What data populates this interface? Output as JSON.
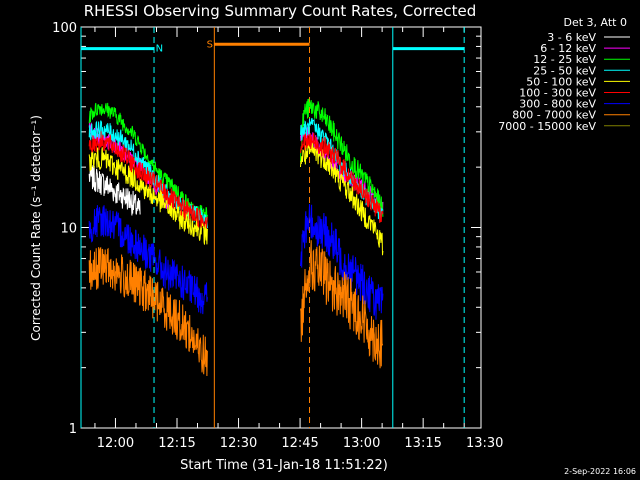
{
  "chart_data": {
    "type": "line",
    "title": "RHESSI Observing Summary Count Rates, Corrected",
    "xlabel": "Start Time (31-Jan-18 11:51:22)",
    "ylabel": "Corrected Count Rate (s⁻¹ detector⁻¹)",
    "y_scale": "log",
    "ylim": [
      1,
      100
    ],
    "y_ticks": [
      {
        "value": 1,
        "label": "1"
      },
      {
        "value": 10,
        "label": "10"
      },
      {
        "value": 100,
        "label": "100"
      }
    ],
    "x_ticks": [
      "12:00",
      "12:15",
      "12:30",
      "12:45",
      "13:00",
      "13:15",
      "13:30"
    ],
    "xlim_minutes": [
      -8.4,
      89.1
    ],
    "legend_header": "Det 3, Att 0",
    "legend_position": "top-right",
    "series": [
      {
        "name": "3 - 6 keV",
        "color": "#ffffff",
        "segments": [
          {
            "t": [
              -6.4,
              -4.0,
              -1.6,
              0.0,
              3.0,
              6.0
            ],
            "values": [
              18,
              17,
              16,
              15,
              14,
              12
            ]
          }
        ]
      },
      {
        "name": "6 - 12 keV",
        "color": "#ff00ff",
        "segments": [
          {
            "t": [
              -6.4,
              -4.0,
              0.0,
              4.0,
              8.0,
              11.0,
              13.0
            ],
            "values": [
              31,
              28,
              26,
              22,
              18,
              15,
              13
            ]
          },
          {
            "t": [
              45.1,
              48.0,
              52.0,
              56.0,
              60.0,
              63.0,
              65.3
            ],
            "values": [
              30,
              27,
              22,
              18,
              16,
              14,
              12
            ]
          }
        ]
      },
      {
        "name": "12 - 25 keV",
        "color": "#00ff00",
        "segments": [
          {
            "t": [
              -6.4,
              -4.0,
              -1.0,
              2.0,
              5.0,
              8.0,
              11.0,
              14.0,
              16.5,
              19.0,
              22.5
            ],
            "values": [
              36,
              40,
              38,
              33,
              28,
              22,
              18,
              16,
              14,
              12,
              12
            ]
          },
          {
            "t": [
              45.1,
              46.0,
              48.0,
              51.0,
              54.0,
              57.0,
              60.0,
              63.0,
              65.3
            ],
            "values": [
              24,
              38,
              40,
              35,
              28,
              22,
              18,
              15,
              12
            ]
          }
        ]
      },
      {
        "name": "25 - 50 keV",
        "color": "#00ffff",
        "segments": [
          {
            "t": [
              -6.4,
              -3.0,
              0.0,
              3.0,
              6.0,
              9.0,
              12.0,
              15.0,
              18.0,
              22.5
            ],
            "values": [
              30,
              31,
              29,
              26,
              22,
              18,
              15,
              13,
              12,
              11
            ]
          },
          {
            "t": [
              45.1,
              48.0,
              51.0,
              54.0,
              57.0,
              60.0,
              63.0,
              65.3
            ],
            "values": [
              30,
              32,
              28,
              22,
              18,
              15,
              13,
              11
            ]
          }
        ]
      },
      {
        "name": "50 - 100 keV",
        "color": "#ffff00",
        "segments": [
          {
            "t": [
              -6.4,
              -3.0,
              0.0,
              4.0,
              8.0,
              12.0,
              16.0,
              20.0,
              22.5
            ],
            "values": [
              22,
              22,
              20,
              18,
              15,
              13,
              11,
              10,
              9
            ]
          },
          {
            "t": [
              45.1,
              48.0,
              51.0,
              54.0,
              57.0,
              60.0,
              63.0,
              65.3
            ],
            "values": [
              22,
              24,
              22,
              18,
              15,
              12,
              10,
              8
            ]
          }
        ]
      },
      {
        "name": "100 - 300 keV",
        "color": "#ff0000",
        "segments": [
          {
            "t": [
              -6.4,
              -3.0,
              0.0,
              3.0,
              6.0,
              9.0,
              12.0,
              15.0,
              18.0,
              21.0,
              22.5
            ],
            "values": [
              26,
              27,
              25,
              22,
              19,
              17,
              15,
              13,
              12,
              11,
              11
            ]
          },
          {
            "t": [
              45.1,
              48.0,
              51.0,
              54.0,
              57.0,
              60.0,
              63.0,
              65.3
            ],
            "values": [
              26,
              27,
              25,
              22,
              18,
              15,
              13,
              11
            ]
          }
        ]
      },
      {
        "name": "300 - 800 keV",
        "color": "#0000ff",
        "segments": [
          {
            "t": [
              -6.4,
              -3.0,
              0.0,
              3.0,
              6.0,
              9.0,
              12.0,
              15.0,
              18.0,
              21.0,
              22.5
            ],
            "values": [
              10,
              11,
              10,
              9,
              8,
              7,
              6,
              5.5,
              5,
              4.5,
              4.5
            ]
          },
          {
            "t": [
              45.1,
              47.0,
              49.0,
              52.0,
              55.0,
              58.0,
              61.0,
              64.0,
              65.3
            ],
            "values": [
              7,
              11,
              10,
              9,
              7,
              6,
              5,
              4.2,
              4
            ]
          }
        ]
      },
      {
        "name": "800 - 7000 keV",
        "color": "#ff8000",
        "segments": [
          {
            "t": [
              -6.4,
              -3.0,
              0.0,
              3.0,
              6.0,
              9.0,
              12.0,
              15.0,
              18.0,
              20.0,
              22.5
            ],
            "values": [
              6,
              6.5,
              6,
              5.5,
              5,
              4.5,
              4,
              3.5,
              3,
              2.5,
              2.2
            ]
          },
          {
            "t": [
              45.1,
              47.0,
              50.0,
              53.0,
              56.0,
              59.0,
              62.0,
              65.3
            ],
            "values": [
              3,
              6.5,
              6,
              5,
              4.5,
              3.8,
              3,
              2.5
            ]
          }
        ]
      },
      {
        "name": "7000 - 15000 keV",
        "color": "#808000",
        "segments": []
      }
    ],
    "flag_bars": [
      {
        "label": "N",
        "color": "#00ffff",
        "value": 78,
        "t_start": -8.4,
        "t_end": 9.4,
        "label_t": 10.7
      },
      {
        "label": "S",
        "color": "#ff8000",
        "value": 82,
        "t_start": 24.1,
        "t_end": 47.3,
        "label_t": 23.0
      },
      {
        "label": "",
        "color": "#00ffff",
        "value": 78,
        "t_start": 67.6,
        "t_end": 85.0,
        "label_t": null
      }
    ],
    "vertical_markers": [
      {
        "t": -8.4,
        "color": "#00ffff",
        "style": "solid"
      },
      {
        "t": 9.4,
        "color": "#00ffff",
        "style": "dashed"
      },
      {
        "t": 24.1,
        "color": "#ff8000",
        "style": "solid"
      },
      {
        "t": 47.3,
        "color": "#ff8000",
        "style": "dashed"
      },
      {
        "t": 67.6,
        "color": "#00ffff",
        "style": "solid"
      },
      {
        "t": 85.0,
        "color": "#00ffff",
        "style": "dashed"
      }
    ]
  },
  "footer_date": "2-Sep-2022 16:06"
}
